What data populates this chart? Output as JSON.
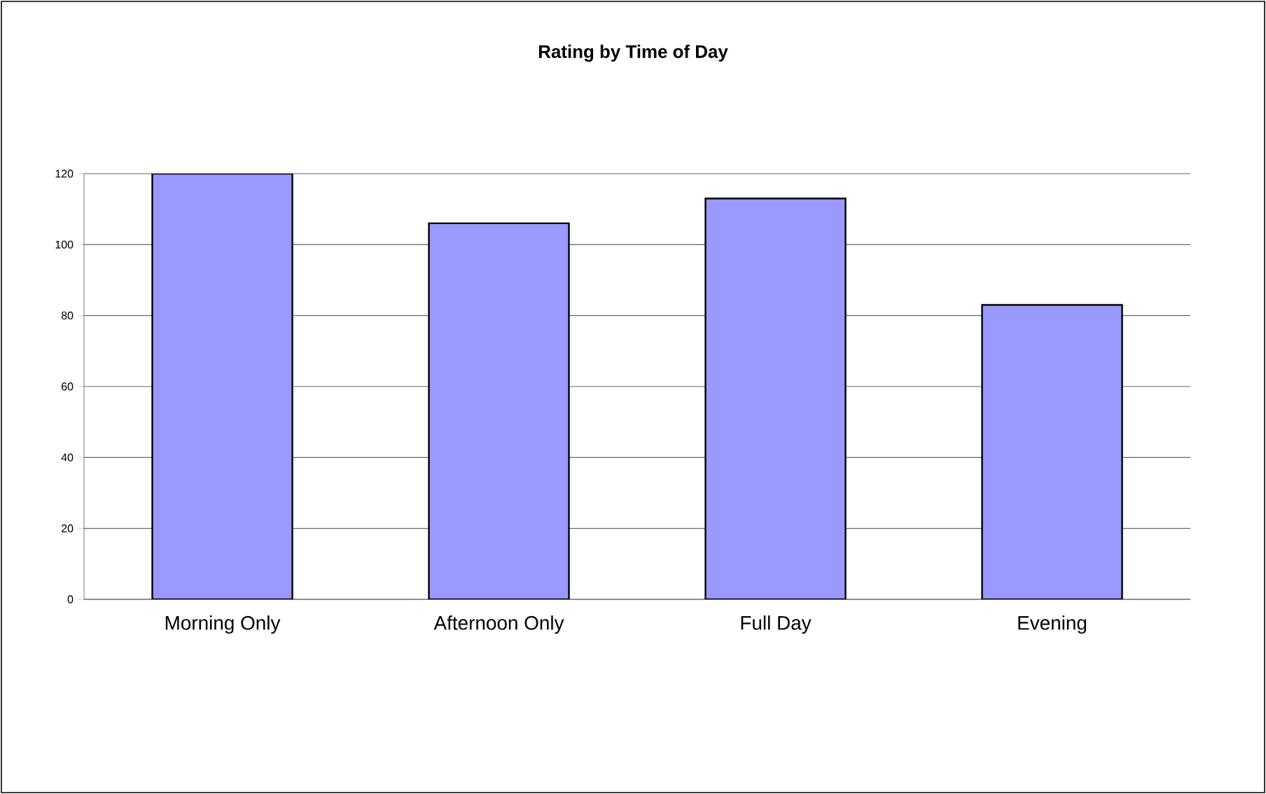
{
  "chart_data": {
    "type": "bar",
    "title": "Rating by Time of Day",
    "categories": [
      "Morning Only",
      "Afternoon Only",
      "Full Day",
      "Evening"
    ],
    "values": [
      120,
      106,
      113,
      83
    ],
    "color": "#9999ff",
    "ylim": [
      0,
      120
    ],
    "yticks": [
      0,
      20,
      40,
      60,
      80,
      100,
      120
    ],
    "grid": "y"
  }
}
